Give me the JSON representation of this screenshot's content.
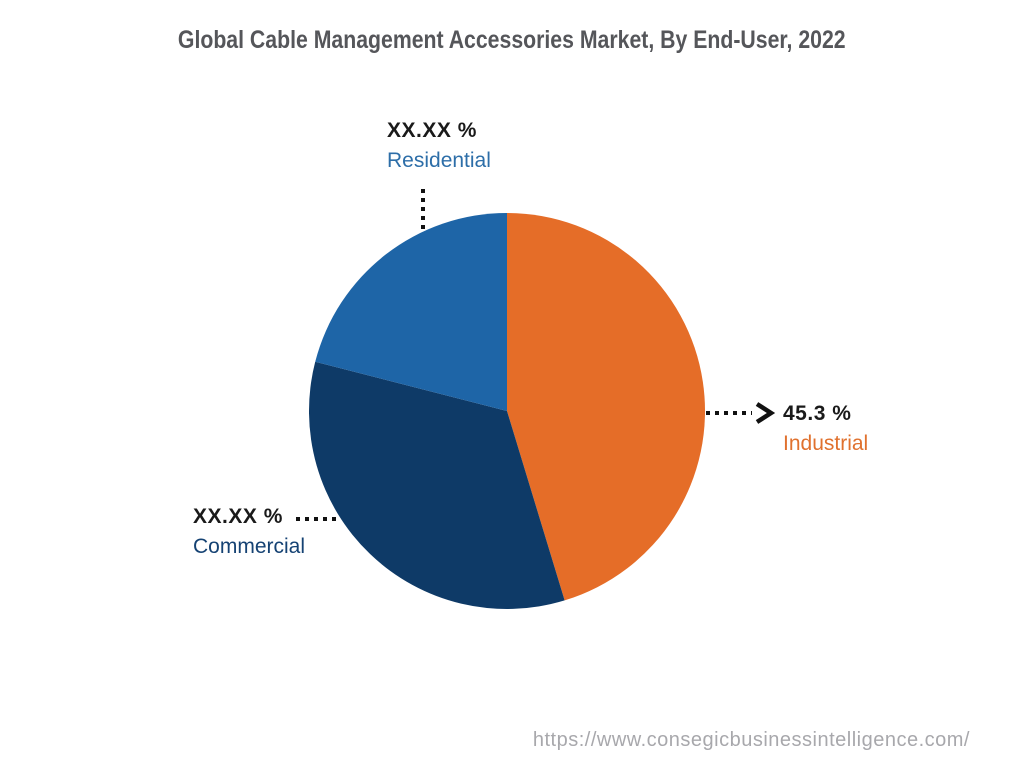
{
  "title": "Global Cable Management Accessories Market, By End-User, 2022",
  "chart_data": {
    "type": "pie",
    "title": "Global Cable Management Accessories Market, By End-User, 2022",
    "start_angle_deg": 0,
    "direction": "clockwise",
    "legend_position": "callout-labels",
    "slices": [
      {
        "label": "Industrial",
        "value_label": "45.3 %",
        "value_pct": 45.3,
        "color": "#e56d28",
        "label_color": "#e0712e"
      },
      {
        "label": "Commercial",
        "value_label": "XX.XX %",
        "value_pct": 33.7,
        "color": "#0e3a67",
        "label_color": "#154273"
      },
      {
        "label": "Residential",
        "value_label": "XX.XX %",
        "value_pct": 21.0,
        "color": "#1e65a7",
        "label_color": "#2d6ea8"
      }
    ]
  },
  "footer": {
    "url": "https://www.consegicbusinessintelligence.com/"
  },
  "colors": {
    "background": "#ffffff",
    "title_text": "#55565a",
    "value_text": "#1a1a1a",
    "leader_line": "#111111",
    "footer_text": "#a8a8ac"
  }
}
